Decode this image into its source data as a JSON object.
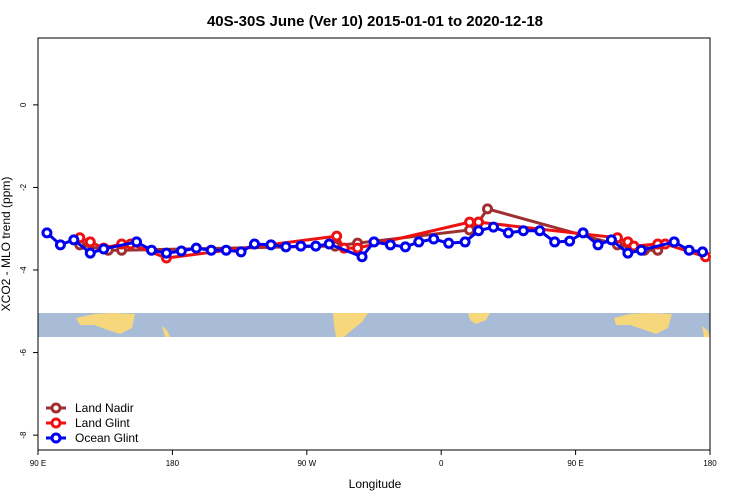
{
  "chart_data": {
    "type": "line",
    "title": "40S-30S June (Ver 10)   2015-01-01 to 2020-12-18",
    "x_label": "Longitude",
    "y_label": "XCO2 - MLO trend (ppm)",
    "xlim": [
      90,
      540
    ],
    "ylim": [
      -8.36,
      1.62
    ],
    "xticks": [
      {
        "value": 90,
        "label": "90 E"
      },
      180,
      {
        "value": 270,
        "label": "90 W"
      },
      {
        "value": 360,
        "label": "0"
      },
      {
        "value": 450,
        "label": "90 E"
      },
      {
        "value": 540,
        "label": "180"
      }
    ],
    "yticks": [
      0,
      -2,
      -4,
      -6,
      -8
    ],
    "legend": "bottom-left",
    "series": [
      {
        "name": "Land Nadir",
        "color": "#a03030",
        "x": [
          118,
          137,
          146,
          289,
          304,
          379,
          385,
          391,
          478,
          496,
          505
        ],
        "values": [
          -3.39,
          -3.52,
          -3.52,
          -3.42,
          -3.35,
          -3.03,
          -2.84,
          -2.52,
          -3.39,
          -3.52,
          -3.52
        ]
      },
      {
        "name": "Land Glint",
        "color": "#ee1111",
        "x": [
          118,
          125,
          134,
          146,
          152,
          176,
          290,
          295,
          304,
          379,
          385,
          478,
          485,
          489,
          505,
          510,
          537
        ],
        "values": [
          -3.22,
          -3.32,
          -3.47,
          -3.37,
          -3.37,
          -3.71,
          -3.18,
          -3.47,
          -3.47,
          -2.84,
          -2.84,
          -3.22,
          -3.32,
          -3.42,
          -3.37,
          -3.37,
          -3.68
        ]
      },
      {
        "name": "Ocean Glint",
        "color": "#0000ee",
        "x": [
          96,
          105,
          114,
          125,
          134,
          156,
          166,
          176,
          186,
          196,
          206,
          216,
          226,
          235,
          246,
          256,
          266,
          276,
          285,
          307,
          315,
          326,
          336,
          345,
          355,
          365,
          376,
          385,
          395,
          405,
          415,
          426,
          436,
          446,
          455,
          465,
          474,
          485,
          494,
          516,
          526,
          535
        ],
        "values": [
          -3.1,
          -3.39,
          -3.27,
          -3.59,
          -3.49,
          -3.32,
          -3.52,
          -3.59,
          -3.54,
          -3.47,
          -3.52,
          -3.52,
          -3.56,
          -3.37,
          -3.39,
          -3.44,
          -3.42,
          -3.42,
          -3.37,
          -3.68,
          -3.32,
          -3.39,
          -3.44,
          -3.32,
          -3.25,
          -3.35,
          -3.32,
          -3.05,
          -2.96,
          -3.1,
          -3.05,
          -3.05,
          -3.32,
          -3.3,
          -3.1,
          -3.39,
          -3.27,
          -3.59,
          -3.52,
          -3.32,
          -3.52,
          -3.56
        ]
      }
    ]
  }
}
